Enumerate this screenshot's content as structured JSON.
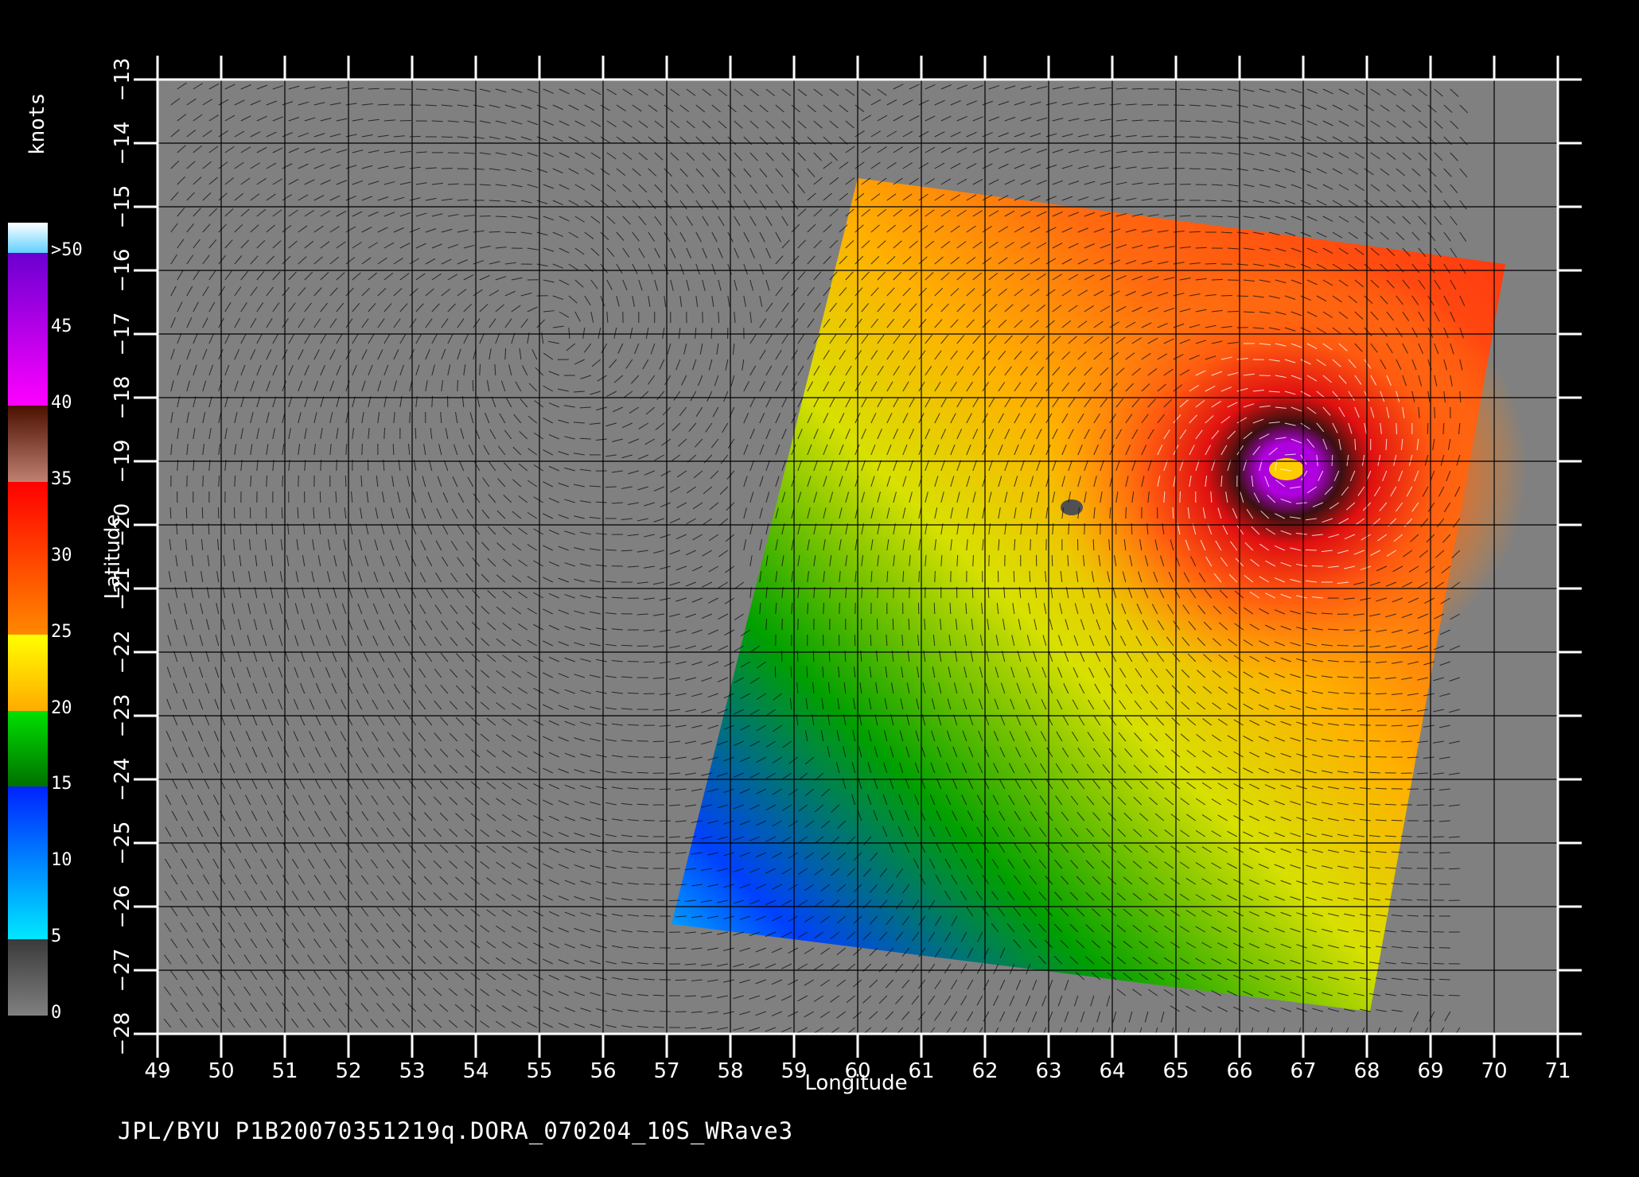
{
  "footer": "JPL/BYU  P1B20070351219q.DORA_070204_10S_WRave3",
  "map": {
    "xlabel": "Longitude",
    "ylabel": "Latitude",
    "lon_range": [
      49,
      71
    ],
    "lat_range": [
      -28,
      -13
    ],
    "lon_ticks": [
      "49",
      "50",
      "51",
      "52",
      "53",
      "54",
      "55",
      "56",
      "57",
      "58",
      "59",
      "60",
      "61",
      "62",
      "63",
      "64",
      "65",
      "66",
      "67",
      "68",
      "69",
      "70",
      "71"
    ],
    "lat_ticks": [
      "-13",
      "-14",
      "-15",
      "-16",
      "-17",
      "-18",
      "-19",
      "-20",
      "-21",
      "-22",
      "-23",
      "-24",
      "-25",
      "-26",
      "-27",
      "-28"
    ],
    "background": "#808080",
    "storm_center": {
      "lon": 66.8,
      "lat": -19.1
    },
    "swath_corners": [
      [
        60.0,
        -14.6
      ],
      [
        70.2,
        -15.9
      ],
      [
        68.0,
        -27.6
      ],
      [
        57.0,
        -26.2
      ]
    ],
    "wind_vectors": "black barbs, white in highest-wind core",
    "grid": true
  },
  "colorbar": {
    "unit": "knots",
    "labels": [
      ">50",
      "45",
      "40",
      "35",
      "30",
      "25",
      "20",
      "15",
      "10",
      "5",
      "0"
    ],
    "bands": [
      {
        "from": 0,
        "to": 5,
        "top": "#3a3a3a",
        "bottom": "#808080"
      },
      {
        "from": 5,
        "to": 15,
        "top": "#0022ff",
        "bottom": "#00e8ff"
      },
      {
        "from": 15,
        "to": 20,
        "top": "#00e000",
        "bottom": "#007000"
      },
      {
        "from": 20,
        "to": 25,
        "top": "#ffff00",
        "bottom": "#ffaa00"
      },
      {
        "from": 25,
        "to": 35,
        "top": "#ff0000",
        "bottom": "#ff8800"
      },
      {
        "from": 35,
        "to": 40,
        "top": "#4a1000",
        "bottom": "#c08070"
      },
      {
        "from": 40,
        "to": 50,
        "top": "#6a00d0",
        "bottom": "#ff00ff"
      },
      {
        "from": 50,
        "to": 52,
        "top": "#ffffff",
        "bottom": "#60d0ff"
      }
    ]
  }
}
